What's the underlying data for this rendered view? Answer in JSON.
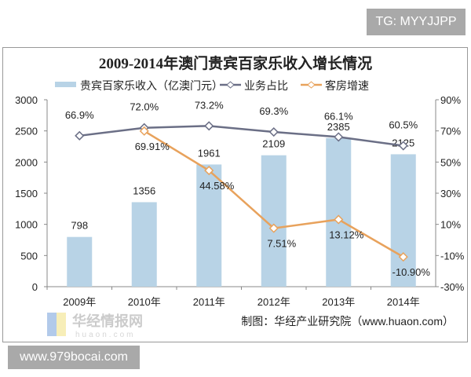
{
  "watermarks": {
    "top": "TG: MYYJJPP",
    "bottom": "www.979bocai.com",
    "logo_text": "华经情报网",
    "logo_sub": "huaon.com"
  },
  "source": "制图：华经产业研究院（www.huaon.com）",
  "chart_data": {
    "type": "bar+line",
    "title": "2009-2014年澳门贵宾百家乐收入增长情况",
    "categories": [
      "2009年",
      "2010年",
      "2011年",
      "2012年",
      "2013年",
      "2014年"
    ],
    "left_axis": {
      "ylim": [
        0,
        3000
      ],
      "ticks": [
        0,
        500,
        1000,
        1500,
        2000,
        2500,
        3000
      ]
    },
    "right_axis": {
      "ylim": [
        -30,
        90
      ],
      "ticks": [
        "-30%",
        "-10%",
        "10%",
        "30%",
        "50%",
        "70%",
        "90%"
      ]
    },
    "grid": false,
    "legend_position": "top",
    "series": [
      {
        "name": "贵宾百家乐收入（亿澳门元）",
        "type": "bar",
        "axis": "left",
        "color": "#b8d3e6",
        "values": [
          798,
          1356,
          1961,
          2109,
          2385,
          2125
        ],
        "labels": [
          "798",
          "1356",
          "1961",
          "2109",
          "2385",
          "2125"
        ]
      },
      {
        "name": "业务占比",
        "type": "line",
        "axis": "right",
        "color": "#6b6f86",
        "values": [
          66.9,
          72.0,
          73.2,
          69.3,
          66.1,
          60.5
        ],
        "labels": [
          "66.9%",
          "72.0%",
          "73.2%",
          "69.3%",
          "66.1%",
          "60.5%"
        ]
      },
      {
        "name": "客房增速",
        "type": "line",
        "axis": "right",
        "color": "#e8a25c",
        "values": [
          null,
          69.91,
          44.58,
          7.51,
          13.12,
          -10.9
        ],
        "labels": [
          "",
          "69.91%",
          "44.58%",
          "7.51%",
          "13.12%",
          "-10.90%"
        ]
      }
    ]
  }
}
